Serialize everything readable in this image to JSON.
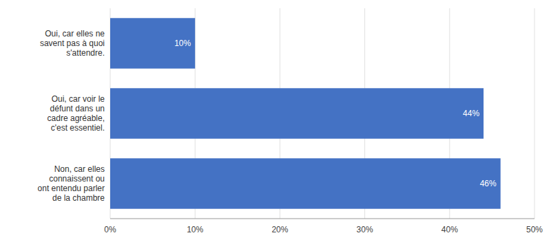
{
  "chart_data": {
    "type": "bar",
    "orientation": "horizontal",
    "categories": [
      "Oui, car elles ne\nsavent pas à quoi\ns'attendre.",
      "Oui, car voir le\ndéfunt dans un\ncadre agréable,\nc'est essentiel.",
      "Non, car elles\nconnaissent ou\nont entendu parler\nde la chambre"
    ],
    "values": [
      0.1,
      0.44,
      0.46
    ],
    "value_labels": [
      "10%",
      "44%",
      "46%"
    ],
    "data_labels": true,
    "color": "#4472C4",
    "xlim": [
      0,
      0.5
    ],
    "xticks": [
      {
        "value": 0.0,
        "label": "0%"
      },
      {
        "value": 0.1,
        "label": "10%"
      },
      {
        "value": 0.2,
        "label": "20%"
      },
      {
        "value": 0.3,
        "label": "30%"
      },
      {
        "value": 0.4,
        "label": "40%"
      },
      {
        "value": 0.5,
        "label": "50%"
      }
    ],
    "grid": true
  }
}
